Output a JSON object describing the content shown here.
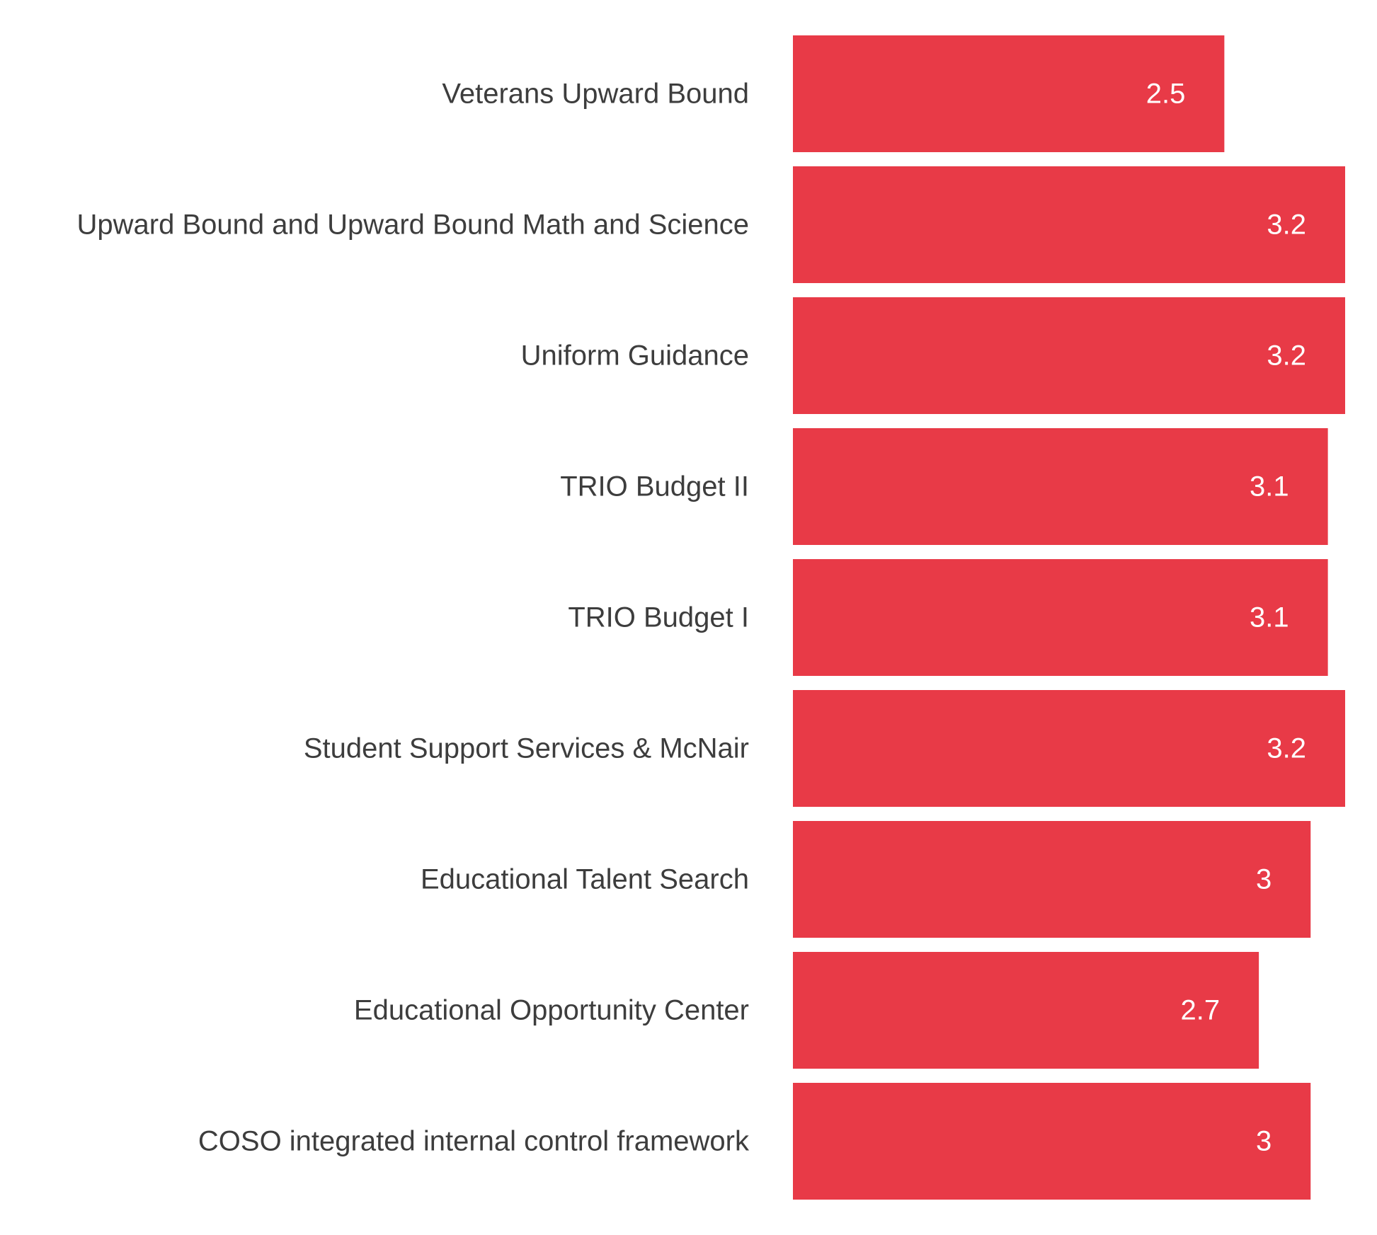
{
  "chart_data": {
    "type": "bar",
    "orientation": "horizontal",
    "categories": [
      "Veterans Upward Bound",
      "Upward Bound and Upward Bound Math and Science",
      "Uniform Guidance",
      "TRIO Budget II",
      "TRIO Budget I",
      "Student Support Services & McNair",
      "Educational Talent Search",
      "Educational Opportunity Center",
      "COSO integrated internal control framework"
    ],
    "values": [
      2.5,
      3.2,
      3.2,
      3.1,
      3.1,
      3.2,
      3.0,
      2.7,
      3.0
    ],
    "data_labels": [
      "2.5",
      "3.2",
      "3.2",
      "3.1",
      "3.1",
      "3.2",
      "3",
      "2.7",
      "3"
    ],
    "xlim": [
      0,
      3.2
    ],
    "grid": false,
    "legend": "none",
    "bar_color": "#e83a47",
    "label_color": "#3d3d3d",
    "value_label_color": "#ffffff"
  }
}
